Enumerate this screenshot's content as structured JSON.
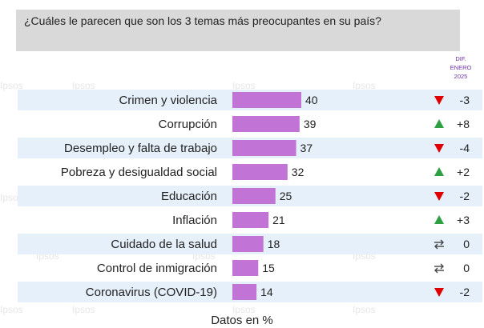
{
  "question": "¿Cuáles le parecen que son los 3 temas más preocupantes en su país?",
  "watermark_text": "Ipsos",
  "diff_header": [
    "DIF.",
    "ENERO",
    "2025"
  ],
  "colors": {
    "bar": "#c274d6",
    "stripe": "#e6f0fa",
    "up": "#2ea043",
    "down": "#e00000",
    "neutral": "#444444"
  },
  "chart_data": {
    "type": "bar",
    "orientation": "horizontal",
    "title": "¿Cuáles le parecen que son los 3 temas más preocupantes en su país?",
    "xlabel": "Datos en %",
    "ylabel": "",
    "xlim": [
      0,
      40
    ],
    "categories": [
      "Crimen y violencia",
      "Corrupción",
      "Desempleo y falta de trabajo",
      "Pobreza y desigualdad social",
      "Educación",
      "Inflación",
      "Cuidado de la salud",
      "Control de inmigración",
      "Coronavirus (COVID-19)"
    ],
    "values": [
      40,
      39,
      37,
      32,
      25,
      21,
      18,
      15,
      14
    ],
    "diff": [
      {
        "dir": "down",
        "label": "-3"
      },
      {
        "dir": "up",
        "label": "+8"
      },
      {
        "dir": "down",
        "label": "-4"
      },
      {
        "dir": "up",
        "label": "+2"
      },
      {
        "dir": "down",
        "label": "-2"
      },
      {
        "dir": "up",
        "label": "+3"
      },
      {
        "dir": "same",
        "label": "0"
      },
      {
        "dir": "same",
        "label": "0"
      },
      {
        "dir": "down",
        "label": "-2"
      }
    ]
  }
}
